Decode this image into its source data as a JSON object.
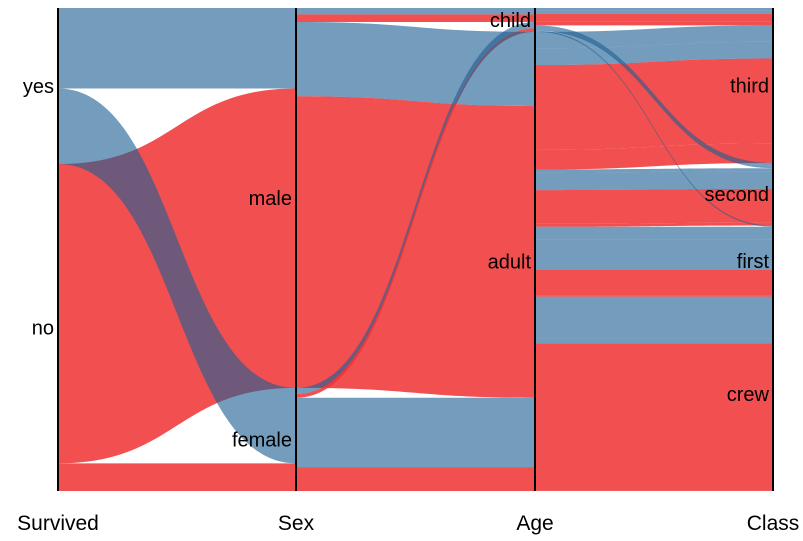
{
  "chart_data": {
    "type": "parallel-sets",
    "title": "",
    "color_by": "Survived",
    "colors": {
      "yes": "#1e5f93",
      "no": "#f03234"
    },
    "dimensions": [
      {
        "name": "Survived",
        "categories": [
          "yes",
          "no"
        ]
      },
      {
        "name": "Sex",
        "categories": [
          "male",
          "female"
        ]
      },
      {
        "name": "Age",
        "categories": [
          "child",
          "adult"
        ]
      },
      {
        "name": "Class",
        "categories": [
          "third",
          "second",
          "first",
          "crew"
        ]
      }
    ],
    "record_fields": [
      "Survived",
      "Sex",
      "Age",
      "Class",
      "count"
    ],
    "records": [
      [
        "yes",
        "male",
        "child",
        "first",
        5
      ],
      [
        "no",
        "male",
        "child",
        "first",
        0
      ],
      [
        "yes",
        "male",
        "adult",
        "first",
        57
      ],
      [
        "no",
        "male",
        "adult",
        "first",
        118
      ],
      [
        "yes",
        "female",
        "child",
        "first",
        1
      ],
      [
        "no",
        "female",
        "child",
        "first",
        0
      ],
      [
        "yes",
        "female",
        "adult",
        "first",
        140
      ],
      [
        "no",
        "female",
        "adult",
        "first",
        4
      ],
      [
        "yes",
        "male",
        "child",
        "second",
        11
      ],
      [
        "no",
        "male",
        "child",
        "second",
        0
      ],
      [
        "yes",
        "male",
        "adult",
        "second",
        14
      ],
      [
        "no",
        "male",
        "adult",
        "second",
        154
      ],
      [
        "yes",
        "female",
        "child",
        "second",
        13
      ],
      [
        "no",
        "female",
        "child",
        "second",
        0
      ],
      [
        "yes",
        "female",
        "adult",
        "second",
        80
      ],
      [
        "no",
        "female",
        "adult",
        "second",
        13
      ],
      [
        "yes",
        "male",
        "child",
        "third",
        13
      ],
      [
        "no",
        "male",
        "child",
        "third",
        35
      ],
      [
        "yes",
        "male",
        "adult",
        "third",
        75
      ],
      [
        "no",
        "male",
        "adult",
        "third",
        387
      ],
      [
        "yes",
        "female",
        "child",
        "third",
        14
      ],
      [
        "no",
        "female",
        "child",
        "third",
        17
      ],
      [
        "yes",
        "female",
        "adult",
        "third",
        76
      ],
      [
        "no",
        "female",
        "adult",
        "third",
        89
      ],
      [
        "yes",
        "male",
        "adult",
        "crew",
        192
      ],
      [
        "no",
        "male",
        "adult",
        "crew",
        670
      ],
      [
        "yes",
        "female",
        "adult",
        "crew",
        20
      ],
      [
        "no",
        "female",
        "adult",
        "crew",
        3
      ]
    ]
  }
}
